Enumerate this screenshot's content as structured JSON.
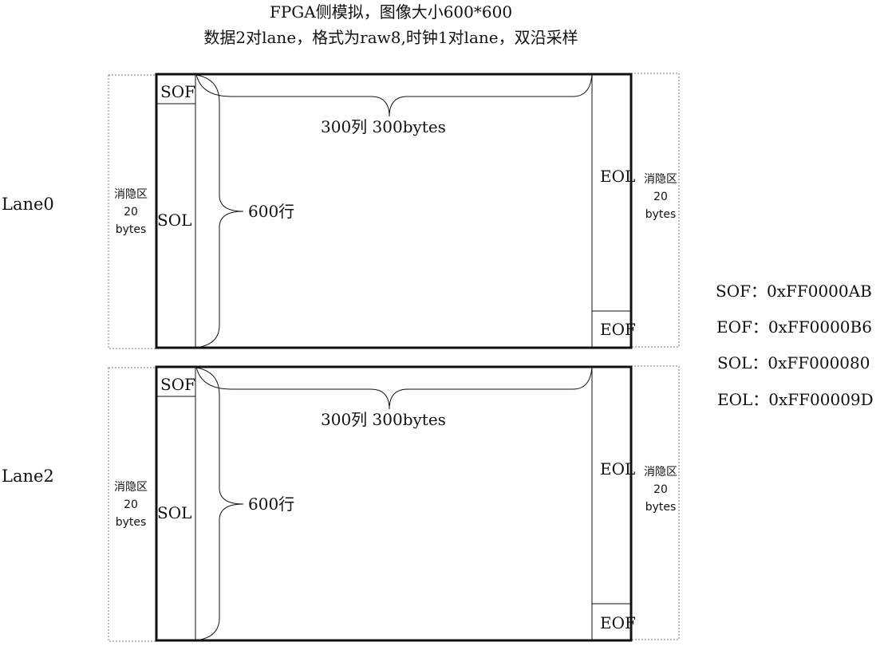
{
  "title": {
    "line1": "FPGA侧模拟，图像大小600*600",
    "line2": "数据2对lane，格式为raw8,时钟1对lane，双沿采样"
  },
  "lanes": [
    {
      "label": "Lane0",
      "sof": "SOF",
      "sol": "SOL",
      "eol": "EOL",
      "eof": "EOF",
      "cols_label": "300列 300bytes",
      "rows_label": "600行",
      "blank_left": [
        "消隐区",
        "20",
        "bytes"
      ],
      "blank_right": [
        "消隐区",
        "20",
        "bytes"
      ]
    },
    {
      "label": "Lane2",
      "sof": "SOF",
      "sol": "SOL",
      "eol": "EOL",
      "eof": "EOF",
      "cols_label": "300列 300bytes",
      "rows_label": "600行",
      "blank_left": [
        "消隐区",
        "20",
        "bytes"
      ],
      "blank_right": [
        "消隐区",
        "20",
        "bytes"
      ]
    }
  ],
  "legend": [
    "SOF：0xFF0000AB",
    "EOF：0xFF0000B6",
    "SOL：0xFF000080",
    "EOL：0xFF00009D"
  ]
}
